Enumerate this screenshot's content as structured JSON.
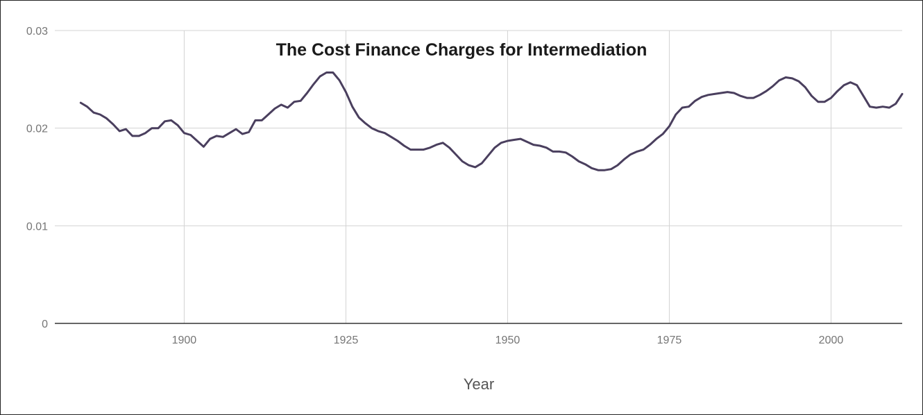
{
  "chart_data": {
    "type": "line",
    "title": "The Cost Finance Charges for Intermediation",
    "xlabel": "Year",
    "ylabel": "",
    "xlim": [
      1880,
      2011
    ],
    "ylim": [
      0,
      0.03
    ],
    "x_ticks": [
      1900,
      1925,
      1950,
      1975,
      2000
    ],
    "x_tick_labels": [
      "1900",
      "1925",
      "1950",
      "1975",
      "2000"
    ],
    "y_ticks": [
      0,
      0.01,
      0.02,
      0.03
    ],
    "y_tick_labels": [
      "0",
      "0.01",
      "0.02",
      "0.03"
    ],
    "grid": true,
    "legend": "none",
    "colors": {
      "line": "#4a3f5e",
      "grid": "#d3d3d3",
      "axis": "#333333"
    },
    "series": [
      {
        "x": [
          1884,
          1885,
          1886,
          1887,
          1888,
          1889,
          1890,
          1891,
          1892,
          1893,
          1894,
          1895,
          1896,
          1897,
          1898,
          1899,
          1900,
          1901,
          1902,
          1903,
          1904,
          1905,
          1906,
          1907,
          1908,
          1909,
          1910,
          1911,
          1912,
          1913,
          1914,
          1915,
          1916,
          1917,
          1918,
          1919,
          1920,
          1921,
          1922,
          1923,
          1924,
          1925,
          1926,
          1927,
          1928,
          1929,
          1930,
          1931,
          1932,
          1933,
          1934,
          1935,
          1936,
          1937,
          1938,
          1939,
          1940,
          1941,
          1942,
          1943,
          1944,
          1945,
          1946,
          1947,
          1948,
          1949,
          1950,
          1951,
          1952,
          1953,
          1954,
          1955,
          1956,
          1957,
          1958,
          1959,
          1960,
          1961,
          1962,
          1963,
          1964,
          1965,
          1966,
          1967,
          1968,
          1969,
          1970,
          1971,
          1972,
          1973,
          1974,
          1975,
          1976,
          1977,
          1978,
          1979,
          1980,
          1981,
          1982,
          1983,
          1984,
          1985,
          1986,
          1987,
          1988,
          1989,
          1990,
          1991,
          1992,
          1993,
          1994,
          1995,
          1996,
          1997,
          1998,
          1999,
          2000,
          2001,
          2002,
          2003,
          2004,
          2005,
          2006,
          2007,
          2008,
          2009,
          2010,
          2011
        ],
        "values": [
          0.0226,
          0.0222,
          0.0216,
          0.0214,
          0.021,
          0.0204,
          0.0197,
          0.0199,
          0.0192,
          0.0192,
          0.0195,
          0.02,
          0.02,
          0.0207,
          0.0208,
          0.0203,
          0.0195,
          0.0193,
          0.0187,
          0.0181,
          0.0189,
          0.0192,
          0.0191,
          0.0195,
          0.0199,
          0.0194,
          0.0196,
          0.0208,
          0.0208,
          0.0214,
          0.022,
          0.0224,
          0.0221,
          0.0227,
          0.0228,
          0.0236,
          0.0245,
          0.0253,
          0.0257,
          0.0257,
          0.0249,
          0.0237,
          0.0222,
          0.0211,
          0.0205,
          0.02,
          0.0197,
          0.0195,
          0.0191,
          0.0187,
          0.0182,
          0.0178,
          0.0178,
          0.0178,
          0.018,
          0.0183,
          0.0185,
          0.018,
          0.0173,
          0.0166,
          0.0162,
          0.016,
          0.0164,
          0.0172,
          0.018,
          0.0185,
          0.0187,
          0.0188,
          0.0189,
          0.0186,
          0.0183,
          0.0182,
          0.018,
          0.0176,
          0.0176,
          0.0175,
          0.0171,
          0.0166,
          0.0163,
          0.0159,
          0.0157,
          0.0157,
          0.0158,
          0.0162,
          0.0168,
          0.0173,
          0.0176,
          0.0178,
          0.0183,
          0.0189,
          0.0194,
          0.0202,
          0.0214,
          0.0221,
          0.0222,
          0.0228,
          0.0232,
          0.0234,
          0.0235,
          0.0236,
          0.0237,
          0.0236,
          0.0233,
          0.0231,
          0.0231,
          0.0234,
          0.0238,
          0.0243,
          0.0249,
          0.0252,
          0.0251,
          0.0248,
          0.0242,
          0.0233,
          0.0227,
          0.0227,
          0.0231,
          0.0238,
          0.0244,
          0.0247,
          0.0244,
          0.0233,
          0.0222,
          0.0221,
          0.0222,
          0.0221,
          0.0225,
          0.0235
        ]
      }
    ]
  }
}
